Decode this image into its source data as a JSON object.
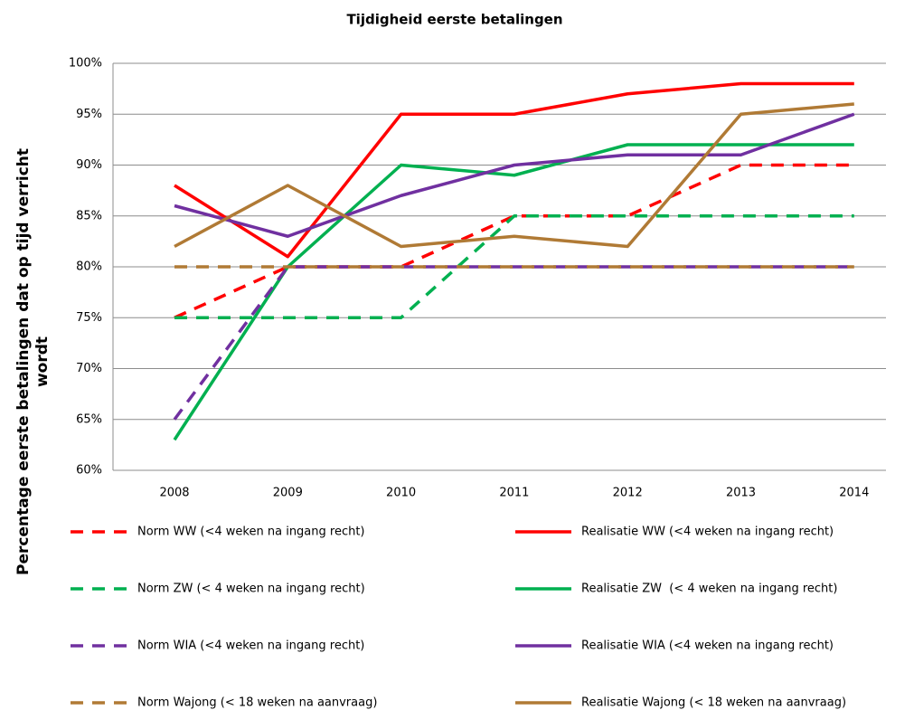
{
  "chart_data": {
    "type": "line",
    "title": "Tijdigheid eerste betalingen",
    "ylabel": [
      "Percentage eerste betalingen dat op tijd verricht",
      "wordt"
    ],
    "categories": [
      "2008",
      "2009",
      "2010",
      "2011",
      "2012",
      "2013",
      "2014"
    ],
    "ylim": [
      60,
      100
    ],
    "yticks": [
      {
        "value": 60,
        "label": "60%"
      },
      {
        "value": 65,
        "label": "65%"
      },
      {
        "value": 70,
        "label": "70%"
      },
      {
        "value": 75,
        "label": "75%"
      },
      {
        "value": 80,
        "label": "80%"
      },
      {
        "value": 85,
        "label": "85%"
      },
      {
        "value": 90,
        "label": "90%"
      },
      {
        "value": 95,
        "label": "95%"
      },
      {
        "value": 100,
        "label": "100%"
      }
    ],
    "grid": true,
    "series": [
      {
        "name": "Norm WW (<4 weken na ingang recht)",
        "color": "#ff0000",
        "style": "dashed",
        "values": [
          75,
          80,
          80,
          85,
          85,
          90,
          90
        ]
      },
      {
        "name": "Realisatie WW (<4 weken na ingang recht)",
        "color": "#ff0000",
        "style": "solid",
        "values": [
          88,
          81,
          95,
          95,
          97,
          98,
          98
        ]
      },
      {
        "name": "Norm ZW (< 4 weken na ingang recht)",
        "color": "#00b050",
        "style": "dashed",
        "values": [
          75,
          75,
          75,
          85,
          85,
          85,
          85
        ]
      },
      {
        "name": "Realisatie ZW  (< 4 weken na ingang recht)",
        "color": "#00b050",
        "style": "solid",
        "values": [
          63,
          80,
          90,
          89,
          92,
          92,
          92
        ]
      },
      {
        "name": "Norm WIA (<4 weken na ingang recht)",
        "color": "#7030a0",
        "style": "dashed",
        "values": [
          65,
          80,
          80,
          80,
          80,
          80,
          80
        ]
      },
      {
        "name": "Realisatie WIA (<4 weken na ingang recht)",
        "color": "#7030a0",
        "style": "solid",
        "values": [
          86,
          83,
          87,
          90,
          91,
          91,
          95
        ]
      },
      {
        "name": "Norm Wajong (< 18 weken na aanvraag)",
        "color": "#b07a35",
        "style": "dashed",
        "values": [
          80,
          80,
          80,
          80,
          80,
          80,
          80
        ]
      },
      {
        "name": "Realisatie Wajong (< 18 weken na aanvraag)",
        "color": "#b07a35",
        "style": "solid",
        "values": [
          82,
          88,
          82,
          83,
          82,
          95,
          96
        ]
      }
    ]
  }
}
